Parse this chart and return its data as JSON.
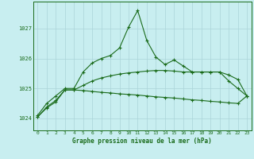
{
  "title": "Graphe pression niveau de la mer (hPa)",
  "background_color": "#c8eef0",
  "grid_color": "#aad4d8",
  "line_color": "#1a6b1a",
  "spine_color": "#1a6b1a",
  "xlim": [
    -0.5,
    23.5
  ],
  "ylim": [
    1023.6,
    1027.9
  ],
  "yticks": [
    1024,
    1025,
    1026,
    1027
  ],
  "xticks": [
    0,
    1,
    2,
    3,
    4,
    5,
    6,
    7,
    8,
    9,
    10,
    11,
    12,
    13,
    14,
    15,
    16,
    17,
    18,
    19,
    20,
    21,
    22,
    23
  ],
  "x": [
    0,
    1,
    2,
    3,
    4,
    5,
    6,
    7,
    8,
    9,
    10,
    11,
    12,
    13,
    14,
    15,
    16,
    17,
    18,
    19,
    20,
    21,
    22,
    23
  ],
  "line1": [
    1024.1,
    1024.5,
    1024.75,
    1025.0,
    1025.0,
    1025.55,
    1025.85,
    1026.0,
    1026.1,
    1026.35,
    1027.05,
    1027.6,
    1026.6,
    1026.05,
    1025.8,
    1025.95,
    1025.75,
    1025.55,
    1025.55,
    1025.55,
    1025.55,
    1025.25,
    1025.0,
    1024.75
  ],
  "line2": [
    1024.05,
    1024.38,
    1024.6,
    1024.95,
    1024.95,
    1024.93,
    1024.9,
    1024.87,
    1024.85,
    1024.82,
    1024.8,
    1024.78,
    1024.75,
    1024.72,
    1024.7,
    1024.68,
    1024.65,
    1024.62,
    1024.6,
    1024.57,
    1024.55,
    1024.52,
    1024.5,
    1024.75
  ],
  "line3": [
    1024.05,
    1024.35,
    1024.55,
    1024.95,
    1024.95,
    1025.1,
    1025.25,
    1025.35,
    1025.42,
    1025.48,
    1025.52,
    1025.55,
    1025.58,
    1025.6,
    1025.6,
    1025.58,
    1025.55,
    1025.55,
    1025.55,
    1025.55,
    1025.55,
    1025.45,
    1025.3,
    1024.75
  ]
}
